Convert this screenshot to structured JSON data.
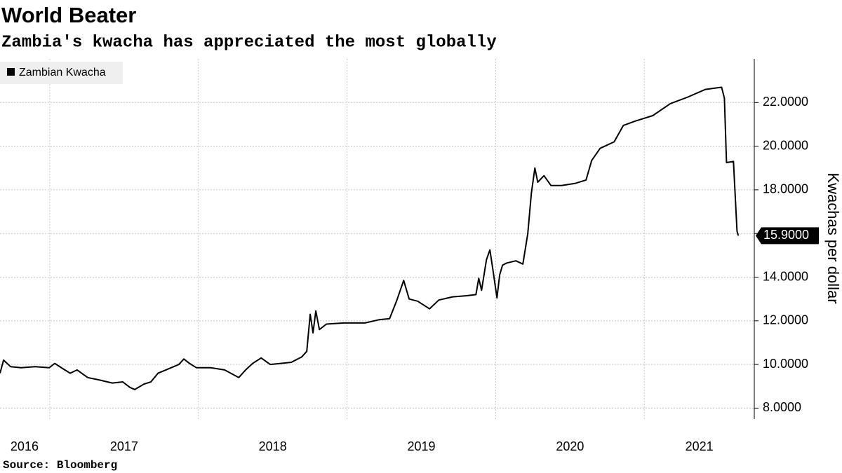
{
  "chart_data": {
    "type": "line",
    "title": "World Beater",
    "subtitle": "Zambia's kwacha has appreciated the most globally",
    "source": "Source: Bloomberg",
    "y_axis_label": "Kwachas per dollar",
    "xlim": [
      2016.665,
      2021.74
    ],
    "ylim": [
      7.5,
      24
    ],
    "xgrid": [
      2017,
      2018,
      2019,
      2020,
      2021
    ],
    "xticks": [
      {
        "value": 2016.83,
        "label": "2016"
      },
      {
        "value": 2017.5,
        "label": "2017"
      },
      {
        "value": 2018.5,
        "label": "2018"
      },
      {
        "value": 2019.5,
        "label": "2019"
      },
      {
        "value": 2020.5,
        "label": "2020"
      },
      {
        "value": 2021.37,
        "label": "2021"
      }
    ],
    "yticks": [
      {
        "value": 8,
        "label": "8.0000"
      },
      {
        "value": 10,
        "label": "10.0000"
      },
      {
        "value": 12,
        "label": "12.0000"
      },
      {
        "value": 14,
        "label": "14.0000"
      },
      {
        "value": 16,
        "label": "16.0000"
      },
      {
        "value": 18,
        "label": "18.0000"
      },
      {
        "value": 20,
        "label": "20.0000"
      },
      {
        "value": 22,
        "label": "22.0000"
      }
    ],
    "grid": true,
    "legend": "top-left",
    "x": [
      2016.665,
      2016.689,
      2016.736,
      2016.807,
      2016.901,
      2016.996,
      2017.033,
      2017.09,
      2017.137,
      2017.184,
      2017.255,
      2017.326,
      2017.421,
      2017.491,
      2017.539,
      2017.572,
      2017.633,
      2017.68,
      2017.728,
      2017.798,
      2017.869,
      2017.902,
      2017.94,
      2017.987,
      2018.082,
      2018.176,
      2018.271,
      2018.318,
      2018.365,
      2018.422,
      2018.483,
      2018.554,
      2018.625,
      2018.696,
      2018.729,
      2018.752,
      2018.771,
      2018.79,
      2018.814,
      2018.861,
      2018.979,
      2019.121,
      2019.215,
      2019.286,
      2019.333,
      2019.381,
      2019.418,
      2019.475,
      2019.555,
      2019.617,
      2019.711,
      2019.806,
      2019.867,
      2019.886,
      2019.905,
      2019.938,
      2019.961,
      2019.98,
      2020.009,
      2020.027,
      2020.046,
      2020.075,
      2020.136,
      2020.183,
      2020.216,
      2020.24,
      2020.264,
      2020.283,
      2020.325,
      2020.372,
      2020.443,
      2020.537,
      2020.608,
      2020.646,
      2020.703,
      2020.797,
      2020.859,
      2020.939,
      2021.057,
      2021.175,
      2021.293,
      2021.411,
      2021.52,
      2021.539,
      2021.553,
      2021.6,
      2021.624,
      2021.633
    ],
    "series": [
      {
        "name": "Zambian Kwacha",
        "color": "#000000",
        "values": [
          9.6,
          10.2,
          9.9,
          9.85,
          9.9,
          9.85,
          10.05,
          9.8,
          9.6,
          9.75,
          9.4,
          9.3,
          9.15,
          9.2,
          8.95,
          8.85,
          9.1,
          9.2,
          9.6,
          9.8,
          10.0,
          10.25,
          10.05,
          9.85,
          9.85,
          9.75,
          9.4,
          9.75,
          10.05,
          10.3,
          10.0,
          10.05,
          10.1,
          10.35,
          10.6,
          12.3,
          11.45,
          12.45,
          11.6,
          11.85,
          11.9,
          11.9,
          12.05,
          12.1,
          12.9,
          13.85,
          13.0,
          12.9,
          12.55,
          12.95,
          13.1,
          13.15,
          13.2,
          13.95,
          13.4,
          14.8,
          15.25,
          14.4,
          13.05,
          14.1,
          14.55,
          14.65,
          14.75,
          14.6,
          16.0,
          17.85,
          19.0,
          18.35,
          18.65,
          18.2,
          18.2,
          18.3,
          18.45,
          19.35,
          19.9,
          20.2,
          20.95,
          21.15,
          21.4,
          21.95,
          22.25,
          22.6,
          22.7,
          22.2,
          19.25,
          19.3,
          16.1,
          15.9
        ],
        "value_labels": [
          null,
          null,
          null,
          null,
          null,
          null,
          null,
          null,
          null,
          null,
          null,
          null,
          null,
          null,
          null,
          null,
          null,
          null,
          null,
          null,
          null,
          null,
          null,
          null,
          null,
          null,
          null,
          null,
          null,
          null,
          null,
          null,
          null,
          null,
          null,
          null,
          null,
          null,
          null,
          null,
          null,
          null,
          null,
          null,
          null,
          null,
          null,
          null,
          null,
          null,
          null,
          null,
          null,
          null,
          null,
          null,
          null,
          null,
          null,
          null,
          null,
          null,
          null,
          null,
          null,
          null,
          null,
          null,
          null,
          null,
          null,
          null,
          null,
          null,
          null,
          null,
          null,
          null,
          null,
          null,
          null,
          null,
          null,
          null,
          null,
          null,
          null,
          "15.9000"
        ]
      }
    ]
  }
}
